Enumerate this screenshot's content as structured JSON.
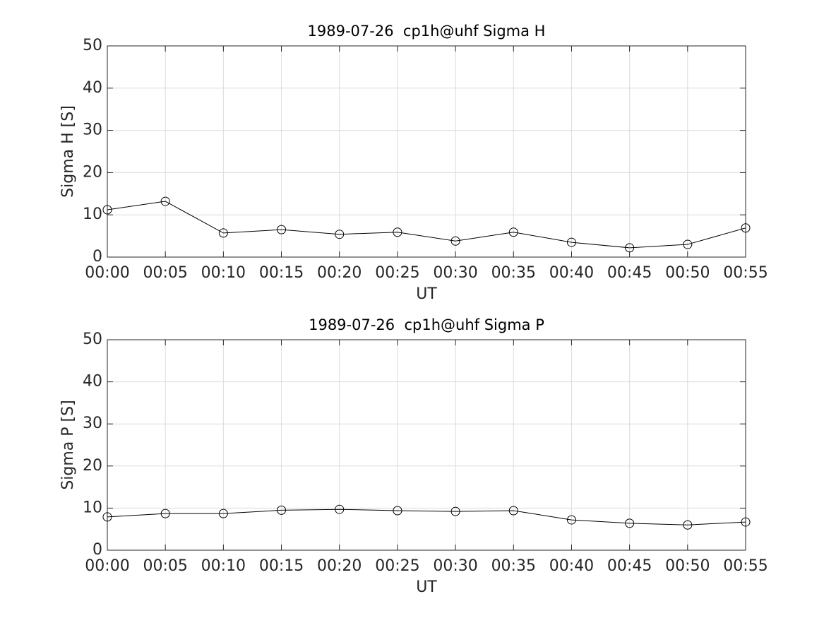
{
  "chart_data": [
    {
      "type": "line",
      "title": "1989-07-26  cp1h@uhf Sigma H",
      "x_label": "UT",
      "y_label": "Sigma H [S]",
      "categories": [
        "00:00",
        "00:05",
        "00:10",
        "00:15",
        "00:20",
        "00:25",
        "00:30",
        "00:35",
        "00:40",
        "00:45",
        "00:50",
        "00:55"
      ],
      "values": [
        11.2,
        13.2,
        5.7,
        6.5,
        5.4,
        5.9,
        3.8,
        5.9,
        3.5,
        2.2,
        3.0,
        6.9
      ],
      "color": "#000000",
      "marker": "circle",
      "ylim": [
        0,
        50
      ],
      "yticks": [
        0,
        10,
        20,
        30,
        40,
        50
      ],
      "grid": true
    },
    {
      "type": "line",
      "title": "1989-07-26  cp1h@uhf Sigma P",
      "x_label": "UT",
      "y_label": "Sigma P [S]",
      "categories": [
        "00:00",
        "00:05",
        "00:10",
        "00:15",
        "00:20",
        "00:25",
        "00:30",
        "00:35",
        "00:40",
        "00:45",
        "00:50",
        "00:55"
      ],
      "values": [
        7.9,
        8.7,
        8.7,
        9.5,
        9.7,
        9.4,
        9.2,
        9.4,
        7.2,
        6.4,
        6.0,
        6.7
      ],
      "color": "#000000",
      "marker": "circle",
      "ylim": [
        0,
        50
      ],
      "yticks": [
        0,
        10,
        20,
        30,
        40,
        50
      ],
      "grid": true
    }
  ]
}
